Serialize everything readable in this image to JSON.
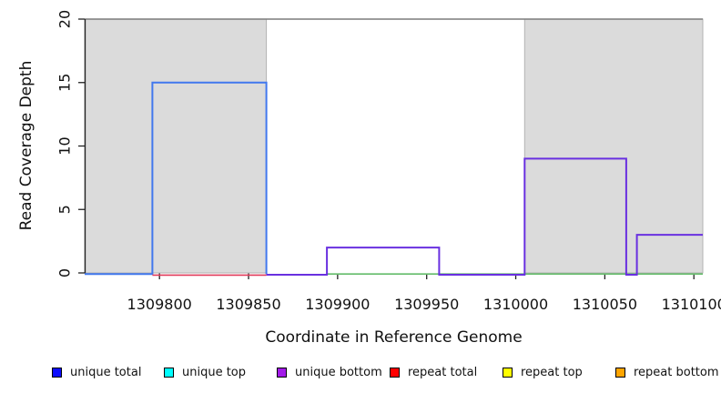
{
  "figure": {
    "xlabel": "Coordinate in Reference Genome",
    "ylabel": "Read Coverage Depth"
  },
  "legend": {
    "items": [
      {
        "label": "unique total",
        "color": "#0d0dff"
      },
      {
        "label": "unique top",
        "color": "#00ffff"
      },
      {
        "label": "unique bottom",
        "color": "#a21ae8"
      },
      {
        "label": "repeat total",
        "color": "#ff0000"
      },
      {
        "label": "repeat top",
        "color": "#ffff00"
      },
      {
        "label": "repeat bottom",
        "color": "#ffa500"
      }
    ]
  },
  "chart_data": {
    "type": "line",
    "title": "",
    "xlabel": "Coordinate in Reference Genome",
    "ylabel": "Read Coverage Depth",
    "xlim": [
      1309758,
      1310105
    ],
    "ylim": [
      0,
      20
    ],
    "x_ticks": [
      1309800,
      1309850,
      1309900,
      1309950,
      1310000,
      1310050,
      1310100
    ],
    "y_ticks": [
      0,
      5,
      10,
      15,
      20
    ],
    "grid": false,
    "legend_position": "bottom",
    "reference_line_y": 20,
    "reference_line_color": "#7c7c7c",
    "repeat_region_color": "#dbdbdb",
    "repeat_regions": [
      [
        1309758,
        1309860
      ],
      [
        1310005,
        1310105
      ]
    ],
    "series": [
      {
        "name": "unique total",
        "color": "#4178ee",
        "width": 2,
        "points": [
          [
            1309758,
            0
          ],
          [
            1309796,
            0
          ],
          [
            1309796,
            15
          ],
          [
            1309860,
            15
          ],
          [
            1309860,
            0
          ]
        ]
      },
      {
        "name": "repeat total",
        "color": "#e13b5b",
        "width": 1.6,
        "points": [
          [
            1309796,
            0
          ],
          [
            1309860,
            0
          ]
        ]
      },
      {
        "name": "unlabeled green baseline",
        "color": "#64bc6a",
        "width": 1.6,
        "points": [
          [
            1309894,
            0
          ],
          [
            1310105,
            0
          ]
        ]
      },
      {
        "name": "unique bottom",
        "color": "#6930e0",
        "width": 2,
        "points": [
          [
            1309860,
            0
          ],
          [
            1309894,
            0
          ],
          [
            1309894,
            2
          ],
          [
            1309957,
            2
          ],
          [
            1309957,
            0
          ],
          [
            1310005,
            0
          ],
          [
            1310005,
            9
          ],
          [
            1310062,
            9
          ],
          [
            1310062,
            0
          ],
          [
            1310068,
            0
          ],
          [
            1310068,
            3
          ],
          [
            1310105,
            3
          ]
        ]
      }
    ]
  }
}
